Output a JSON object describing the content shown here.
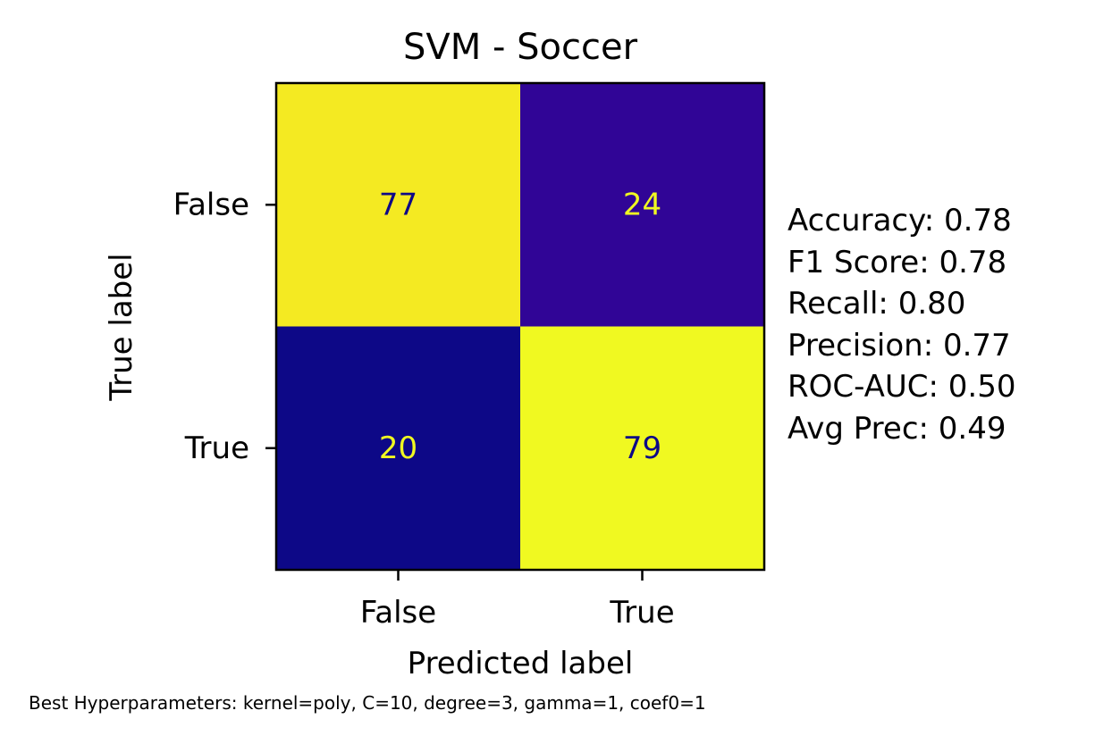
{
  "chart_data": {
    "type": "heatmap",
    "title": "SVM - Soccer",
    "xlabel": "Predicted label",
    "ylabel": "True label",
    "x_categories": [
      "False",
      "True"
    ],
    "y_categories": [
      "False",
      "True"
    ],
    "cells": [
      {
        "row": 0,
        "col": 0,
        "value": 77
      },
      {
        "row": 0,
        "col": 1,
        "value": 24
      },
      {
        "row": 1,
        "col": 0,
        "value": 20
      },
      {
        "row": 1,
        "col": 1,
        "value": 79
      }
    ],
    "colormap": "plasma",
    "color_range": [
      20,
      79
    ],
    "colorbar": false,
    "grid": false
  },
  "metrics": [
    "Accuracy: 0.78",
    "F1 Score: 0.78",
    "Recall: 0.80",
    "Precision: 0.77",
    "ROC-AUC: 0.50",
    "Avg Prec: 0.49"
  ],
  "footnote": "Best Hyperparameters: kernel=poly, C=10, degree=3, gamma=1, coef0=1",
  "colors": {
    "high": "#f0f921",
    "low": "#0d0887",
    "text_on_low": "#f0f921",
    "text_on_high": "#0d0887"
  }
}
